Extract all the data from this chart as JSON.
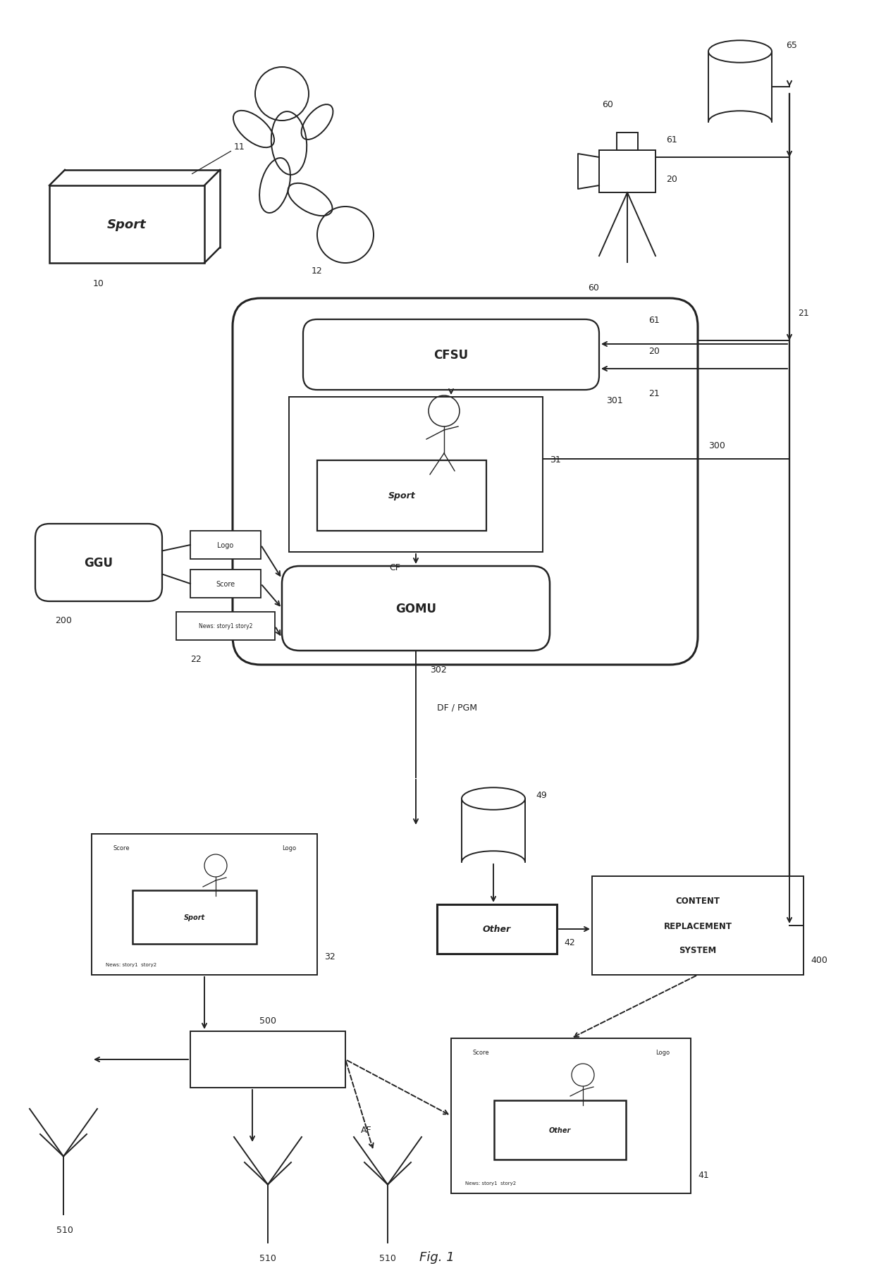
{
  "bg_color": "#ffffff",
  "lc": "#222222",
  "figsize": [
    12.4,
    18.24
  ],
  "dpi": 100,
  "xlim": [
    0,
    124
  ],
  "ylim": [
    0,
    182.4
  ]
}
